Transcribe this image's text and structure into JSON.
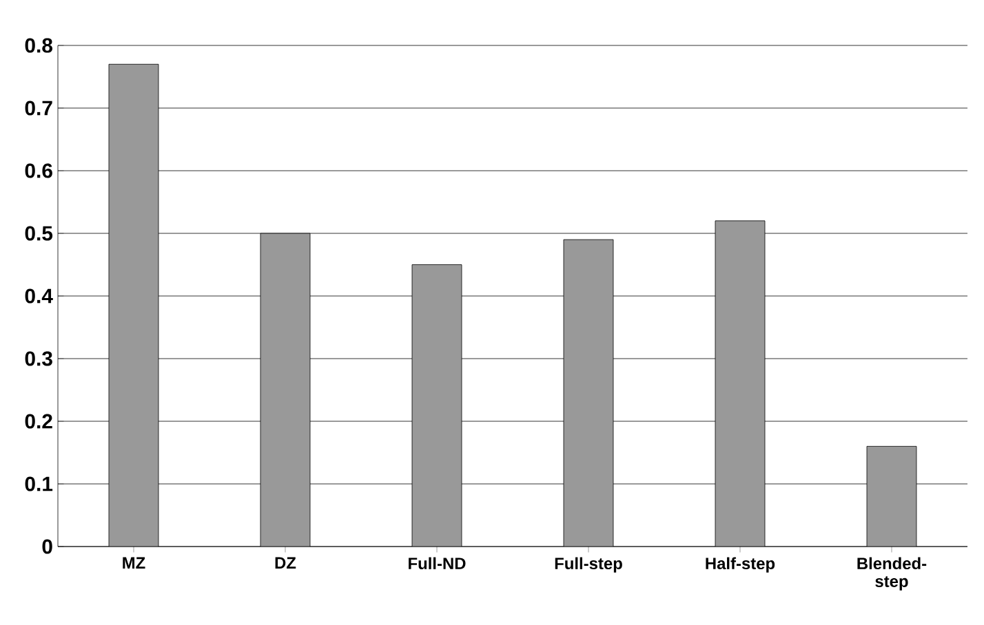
{
  "chart_data": {
    "type": "bar",
    "categories": [
      "MZ",
      "DZ",
      "Full-ND",
      "Full-step",
      "Half-step",
      "Blended-step"
    ],
    "values": [
      0.77,
      0.5,
      0.45,
      0.49,
      0.52,
      0.16
    ],
    "color": "#999999",
    "ylim": [
      0,
      0.8
    ],
    "yticks": [
      0,
      0.1,
      0.2,
      0.3,
      0.4,
      0.5,
      0.6,
      0.7,
      0.8
    ],
    "grid": "y"
  }
}
